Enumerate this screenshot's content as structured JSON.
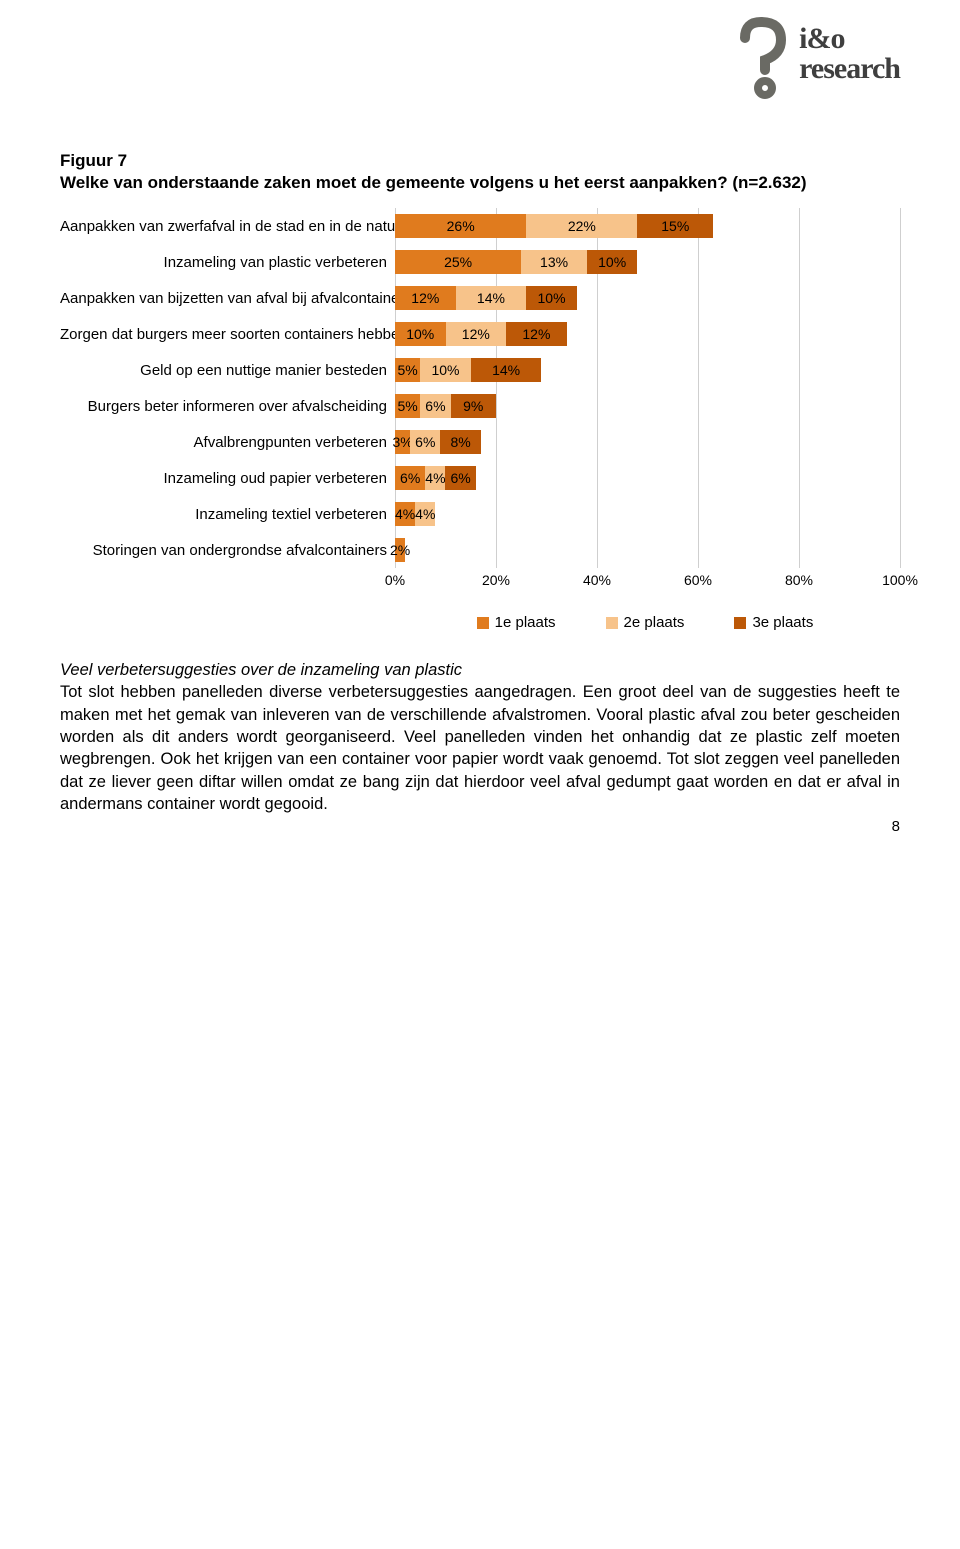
{
  "logo": {
    "line1": "i&o",
    "line2": "research",
    "mark_color": "#6a6a64"
  },
  "figure_label": "Figuur 7",
  "figure_question": "Welke van onderstaande zaken moet de gemeente volgens u het eerst aanpakken? (n=2.632)",
  "chart": {
    "type": "stacked-horizontal-bar",
    "x_axis": {
      "min": 0,
      "max": 100,
      "tick_step": 20,
      "tick_labels": [
        "0%",
        "20%",
        "40%",
        "60%",
        "80%",
        "100%"
      ]
    },
    "grid_color": "#cfcfcf",
    "series": [
      {
        "key": "s1",
        "label": "1e plaats",
        "color": "#e07b1e"
      },
      {
        "key": "s2",
        "label": "2e plaats",
        "color": "#f7c38a"
      },
      {
        "key": "s3",
        "label": "3e plaats",
        "color": "#bc5807"
      }
    ],
    "categories": [
      {
        "label": "Aanpakken van zwerfafval in de stad en in de natuur",
        "values": [
          26,
          22,
          15
        ],
        "show": [
          "26%",
          "22%",
          "15%"
        ]
      },
      {
        "label": "Inzameling van plastic verbeteren",
        "values": [
          25,
          13,
          10
        ],
        "show": [
          "25%",
          "13%",
          "10%"
        ]
      },
      {
        "label": "Aanpakken van bijzetten van afval bij afvalcontainers",
        "values": [
          12,
          14,
          10
        ],
        "show": [
          "12%",
          "14%",
          "10%"
        ]
      },
      {
        "label": "Zorgen dat burgers meer soorten containers hebben",
        "values": [
          10,
          12,
          12
        ],
        "show": [
          "10%",
          "12%",
          "12%"
        ]
      },
      {
        "label": "Geld op een nuttige manier besteden",
        "values": [
          5,
          10,
          14
        ],
        "show": [
          "5%",
          "10%",
          "14%"
        ]
      },
      {
        "label": "Burgers beter informeren over afvalscheiding",
        "values": [
          5,
          6,
          9
        ],
        "show": [
          "5%",
          "6%",
          "9%"
        ]
      },
      {
        "label": "Afvalbrengpunten verbeteren",
        "values": [
          3,
          6,
          8
        ],
        "show": [
          "3%",
          "6%",
          "8%"
        ]
      },
      {
        "label": "Inzameling oud papier verbeteren",
        "values": [
          6,
          4,
          6
        ],
        "show": [
          "6%",
          "4%",
          "6%"
        ]
      },
      {
        "label": "Inzameling textiel verbeteren",
        "values": [
          4,
          4,
          0
        ],
        "show": [
          "4%",
          "4%",
          ""
        ]
      },
      {
        "label": "Storingen van ondergrondse afvalcontainers",
        "values": [
          2,
          0,
          0
        ],
        "show": [
          "2%",
          "",
          ""
        ]
      }
    ]
  },
  "body": {
    "subhead": "Veel verbetersuggesties over de inzameling van plastic",
    "paragraph": "Tot slot hebben panelleden diverse verbetersuggesties aangedragen. Een groot deel van de suggesties heeft te maken met het gemak van inleveren van de verschillende afvalstromen. Vooral plastic afval zou beter gescheiden worden als dit anders wordt georganiseerd. Veel panelleden vinden het onhandig dat ze plastic zelf moeten wegbrengen. Ook het krijgen van een container voor papier wordt vaak genoemd. Tot slot zeggen veel panelleden dat ze liever geen diftar willen omdat ze bang zijn dat hierdoor veel afval gedumpt gaat worden en dat er afval in andermans container wordt gegooid."
  },
  "page_number": "8"
}
